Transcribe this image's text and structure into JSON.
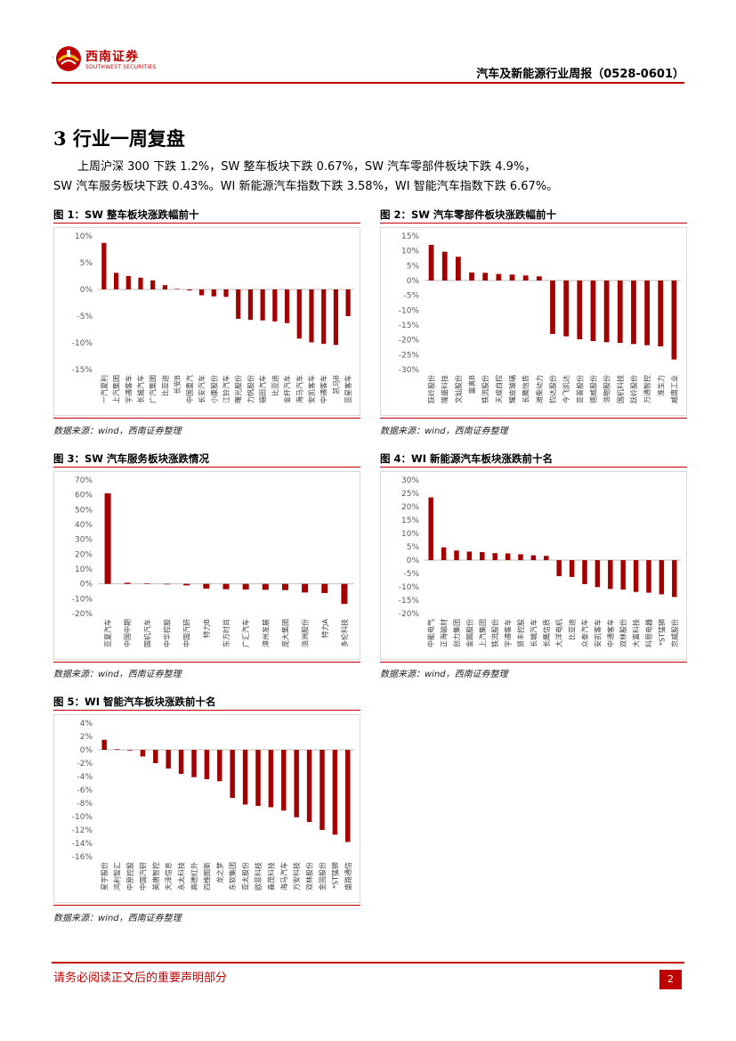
{
  "brand": {
    "name_cn": "西南证券",
    "name_en": "SOUTHWEST SECURITIES",
    "color": "#c00000"
  },
  "header": {
    "title": "汽车及新能源行业周报（0528-0601）",
    "dot": "·"
  },
  "section": {
    "title": "3 行业一周复盘"
  },
  "paragraph": {
    "line1": "上周沪深 300 下跌 1.2%，SW 整车板块下跌 0.67%，SW 汽车零部件板块下跌 4.9%，",
    "line2": "SW 汽车服务板块下跌 0.43%。WI 新能源汽车指数下跌 3.58%，WI 智能汽车指数下跌 6.67%。"
  },
  "source_note": "数据来源：wind，西南证券整理",
  "figures": {
    "fig1": {
      "caption": "图 1：SW 整车板块涨跌幅前十"
    },
    "fig2": {
      "caption": "图 2：SW 汽车零部件板块涨跌幅前十"
    },
    "fig3": {
      "caption": "图 3：SW 汽车服务板块涨跌情况"
    },
    "fig4": {
      "caption": "图 4：WI 新能源汽车板块涨跌前十名"
    },
    "fig5": {
      "caption": "图 5：WI 智能汽车板块涨跌前十名"
    }
  },
  "footer": {
    "disclaimer": "请务必阅读正文后的重要声明部分",
    "page": "2"
  },
  "chart_data": [
    {
      "id": "fig1",
      "type": "bar",
      "bar_color": "#a50000",
      "title": "SW 整车板块涨跌幅前十",
      "ylim": [
        -15,
        10
      ],
      "yticks": [
        10,
        5,
        0,
        -5,
        -10,
        -15
      ],
      "tick_suffix": "%",
      "categories": [
        "一汽夏利",
        "上汽集团",
        "宇通客车",
        "长城汽车",
        "广汽集团",
        "比亚迪",
        "长安B",
        "中国重汽",
        "长安汽车",
        "小康股份",
        "江铃汽车",
        "曙光股份",
        "力帆股份",
        "福田汽车",
        "比亚迪",
        "金杯汽车",
        "海马汽车",
        "安凯客车",
        "中通客车",
        "凯马B",
        "亚星客车"
      ],
      "values": [
        8.7,
        3.1,
        2.5,
        2.2,
        1.7,
        0.8,
        0.1,
        -0.2,
        -1.1,
        -1.3,
        -1.4,
        -5.5,
        -5.7,
        -5.8,
        -6.0,
        -6.3,
        -9.2,
        -9.9,
        -10.2,
        -10.4,
        -5.0
      ]
    },
    {
      "id": "fig2",
      "type": "bar",
      "bar_color": "#a50000",
      "title": "SW 汽车零部件板块涨跌幅前十",
      "ylim": [
        -30,
        15
      ],
      "yticks": [
        15,
        10,
        5,
        0,
        -5,
        -10,
        -15,
        -20,
        -25,
        -30
      ],
      "tick_suffix": "%",
      "categories": [
        "跃岭股份",
        "隆盛科技",
        "文灿股份",
        "富奥B",
        "铁流股份",
        "天成自控",
        "耀皮玻璃",
        "长鹰信质",
        "潍柴动力",
        "钧达股份",
        "今飞凯达",
        "亚普股份",
        "德威股份",
        "浩物股份",
        "国机科技",
        "跃岭股份",
        "万通智控",
        "淮生力",
        "威唐工业"
      ],
      "values": [
        12.0,
        9.7,
        8.0,
        2.7,
        2.6,
        2.2,
        2.0,
        1.7,
        1.4,
        -18.0,
        -18.8,
        -19.8,
        -20.4,
        -20.8,
        -21.0,
        -21.4,
        -21.8,
        -22.2,
        -26.6
      ]
    },
    {
      "id": "fig3",
      "type": "bar",
      "bar_color": "#a50000",
      "title": "SW 汽车服务板块涨跌情况",
      "ylim": [
        -20,
        70
      ],
      "yticks": [
        70,
        60,
        50,
        40,
        30,
        20,
        10,
        0,
        -10,
        -20
      ],
      "tick_suffix": "%",
      "categories": [
        "亚夏汽车",
        "中国中期",
        "国机汽车",
        "中华控股",
        "中国汽研",
        "特力B",
        "东方时尚",
        "广汇汽车",
        "漳州发展",
        "庞大集团",
        "浩洲股份",
        "特力A",
        "多伦科技"
      ],
      "values": [
        61.0,
        0.8,
        0.2,
        -0.2,
        -1.0,
        -3.2,
        -3.6,
        -3.8,
        -4.0,
        -4.2,
        -5.8,
        -6.2,
        -13.5
      ]
    },
    {
      "id": "fig4",
      "type": "bar",
      "bar_color": "#a50000",
      "title": "WI 新能源汽车板块涨跌前十名",
      "ylim": [
        -20,
        30
      ],
      "yticks": [
        30,
        25,
        20,
        15,
        10,
        5,
        0,
        -5,
        -10,
        -15,
        -20
      ],
      "tick_suffix": "%",
      "categories": [
        "中能电气",
        "正海磁材",
        "创力集团",
        "金圆股份",
        "上汽集团",
        "铁流股份",
        "宇通客车",
        "贤丰控股",
        "长城汽车",
        "长鹰信质",
        "大洋电机",
        "比亚迪",
        "众泰汽车",
        "安凯客车",
        "中通客车",
        "双林股份",
        "大富科技",
        "科恩电器",
        "*ST猛狮",
        "京威股份"
      ],
      "values": [
        23.5,
        4.8,
        3.6,
        3.2,
        3.0,
        2.6,
        2.5,
        2.2,
        1.8,
        1.6,
        -6.0,
        -6.3,
        -9.0,
        -10.1,
        -10.8,
        -11.0,
        -11.9,
        -12.2,
        -12.8,
        -13.8
      ]
    },
    {
      "id": "fig5",
      "type": "bar",
      "bar_color": "#a50000",
      "title": "WI 智能汽车板块涨跌前十名",
      "ylim": [
        -16,
        4
      ],
      "yticks": [
        4,
        2,
        0,
        -2,
        -4,
        -6,
        -8,
        -10,
        -12,
        -14,
        -16
      ],
      "tick_suffix": "%",
      "categories": [
        "星宇股份",
        "鸿利智汇",
        "中原控股",
        "中国汽研",
        "英唐智控",
        "天泽信息",
        "永太科技",
        "高德红外",
        "四维图新",
        "龙之梦",
        "东软集团",
        "亚太股份",
        "欧菲科技",
        "鑫茂科技",
        "海马汽车",
        "万安科技",
        "双林股份",
        "金固股份",
        "*ST猛狮",
        "盛路通信"
      ],
      "values": [
        1.5,
        0.1,
        -0.1,
        -1.0,
        -2.0,
        -2.8,
        -3.6,
        -4.1,
        -4.4,
        -4.7,
        -7.2,
        -8.2,
        -8.4,
        -8.6,
        -9.1,
        -10.1,
        -10.8,
        -12.0,
        -12.7,
        -13.8
      ]
    }
  ]
}
